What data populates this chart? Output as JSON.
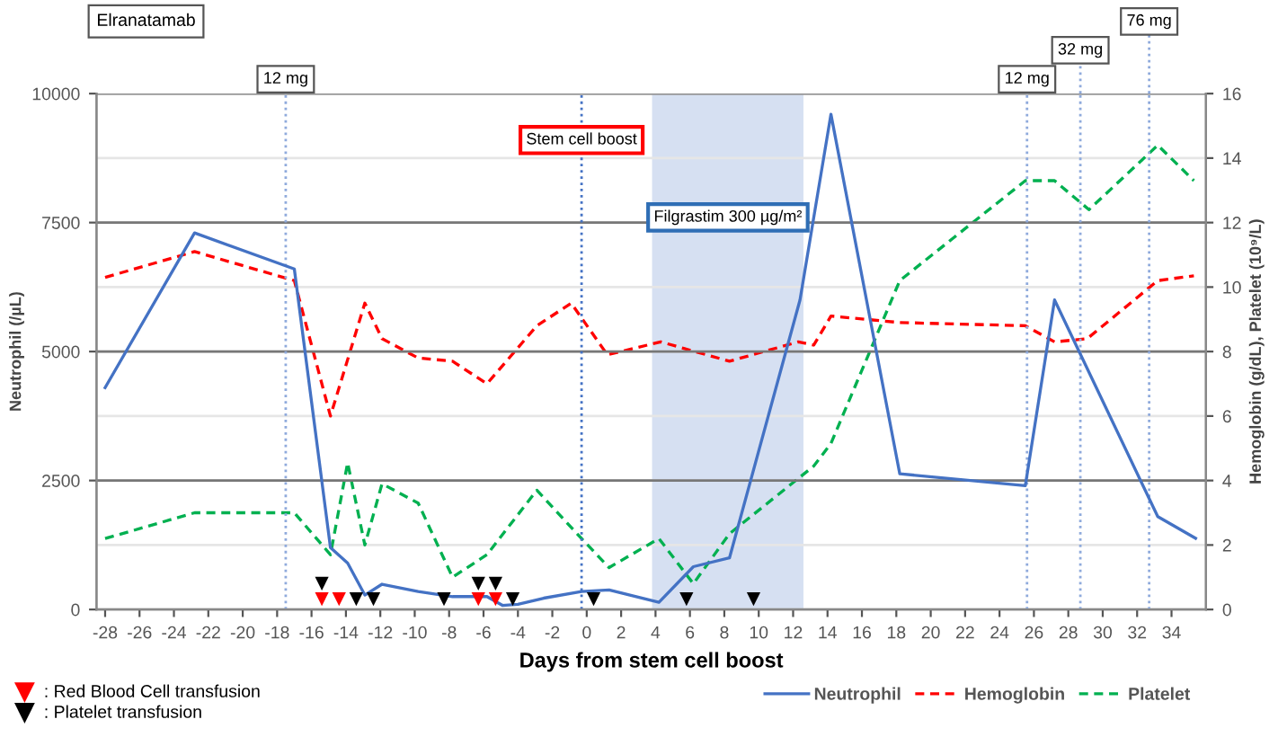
{
  "chart_data": {
    "type": "line",
    "xlabel": "Days from stem cell boost",
    "ylabel": "Neutrophil (/µL)",
    "y2label": "Hemoglobin (g/dL), Platelet (10⁹/L)",
    "xlim": [
      -28.5,
      36
    ],
    "xticks": [
      -28,
      -26,
      -24,
      -22,
      -20,
      -18,
      -16,
      -14,
      -12,
      -10,
      -8,
      -6,
      -4,
      -2,
      0,
      2,
      4,
      6,
      8,
      10,
      12,
      14,
      16,
      18,
      20,
      22,
      24,
      26,
      28,
      30,
      32,
      34
    ],
    "ylim": [
      0,
      10000
    ],
    "yticks": [
      0,
      2500,
      5000,
      7500,
      10000
    ],
    "y2lim": [
      0,
      16
    ],
    "y2ticks": [
      0,
      2,
      4,
      6,
      8,
      10,
      12,
      14,
      16
    ],
    "grid": true,
    "legend": "bottom",
    "series": [
      {
        "name": "Neutrophil",
        "color": "#4472c4",
        "line_style": "solid",
        "x": [
          -28,
          -22.8,
          -17,
          -14.9,
          -13.9,
          -12.9,
          -11.9,
          -9.8,
          -7.8,
          -5.8,
          -4.9,
          -4,
          -2.5,
          -0.3,
          1.3,
          4.2,
          6.2,
          8.3,
          12.4,
          14.2,
          18.2,
          25.5,
          27.2,
          33.2,
          35.4
        ],
        "values": [
          4300,
          7300,
          6600,
          1200,
          900,
          280,
          490,
          350,
          250,
          250,
          80,
          100,
          220,
          350,
          380,
          140,
          830,
          1000,
          6000,
          9600,
          2630,
          2400,
          6000,
          1800,
          1380
        ]
      },
      {
        "name": "Hemoglobin",
        "color": "#ff0000",
        "line_style": "dashed",
        "x": [
          -28,
          -22.8,
          -17,
          -14.9,
          -12.9,
          -11.9,
          -9.8,
          -7.8,
          -5.8,
          -2.9,
          -0.9,
          1.2,
          4.3,
          8.3,
          12.3,
          13.2,
          14.2,
          18.2,
          25.5,
          27.2,
          29.1,
          33.2,
          35.3
        ],
        "values": [
          10.3,
          11.1,
          10.2,
          6.0,
          9.5,
          8.4,
          7.8,
          7.7,
          7.0,
          8.8,
          9.5,
          7.9,
          8.3,
          7.7,
          8.3,
          8.2,
          9.1,
          8.9,
          8.8,
          8.3,
          8.4,
          10.2,
          10.35
        ],
        "axis": "y2"
      },
      {
        "name": "Platelet",
        "color": "#00b050",
        "line_style": "dashed",
        "x": [
          -28,
          -22.8,
          -17,
          -14.9,
          -13.9,
          -12.9,
          -11.9,
          -9.8,
          -7.8,
          -5.8,
          -2.9,
          -0.3,
          1.3,
          4.2,
          6.2,
          8.3,
          13.2,
          14.2,
          18.2,
          25.5,
          27.2,
          29.2,
          33.2,
          35.3
        ],
        "values": [
          2.2,
          3.0,
          3.0,
          1.7,
          4.55,
          2.0,
          3.9,
          3.3,
          1.0,
          1.7,
          3.7,
          2.2,
          1.3,
          2.2,
          0.8,
          2.35,
          4.45,
          5.15,
          10.2,
          13.3,
          13.3,
          12.4,
          14.4,
          13.3
        ],
        "axis": "y2"
      },
      {
        "name": ": Red Blood Cell transfusion",
        "type": "scatter",
        "marker": "triangle",
        "color": "#ff0000",
        "x": [
          -15.4,
          -14.4,
          -6.3,
          -5.3
        ],
        "values": [
          200,
          200,
          200,
          200
        ]
      },
      {
        "name": ": Platelet transfusion",
        "type": "scatter",
        "marker": "triangle",
        "color": "#000000",
        "x": [
          -15.4,
          -13.4,
          -12.4,
          -8.3,
          -6.3,
          -5.3,
          -4.3,
          0.4,
          5.8,
          9.7
        ],
        "values": [
          500,
          200,
          200,
          200,
          500,
          500,
          200,
          200,
          200,
          200
        ]
      }
    ],
    "ref_lines": [
      {
        "axis": "x",
        "value": -17.5,
        "label": "12 mg",
        "color": "#8faadc",
        "line_style": "dotted"
      },
      {
        "axis": "x",
        "value": -0.3,
        "label": "Stem cell boost",
        "color": "#4472c4",
        "line_style": "dotted"
      },
      {
        "axis": "x",
        "value": 25.6,
        "label": "12 mg",
        "color": "#8faadc",
        "line_style": "dotted"
      },
      {
        "axis": "x",
        "value": 28.7,
        "label": "32 mg",
        "color": "#8faadc",
        "line_style": "dotted"
      },
      {
        "axis": "x",
        "value": 32.7,
        "label": "76 mg",
        "color": "#8faadc",
        "line_style": "dotted"
      }
    ],
    "bands": [
      {
        "axis": "x",
        "from": 3.8,
        "to": 12.6,
        "label": "Filgrastim 300 µg/m²",
        "color": "#d6e0f2"
      }
    ],
    "annotations": [
      "Elranatamab"
    ]
  }
}
